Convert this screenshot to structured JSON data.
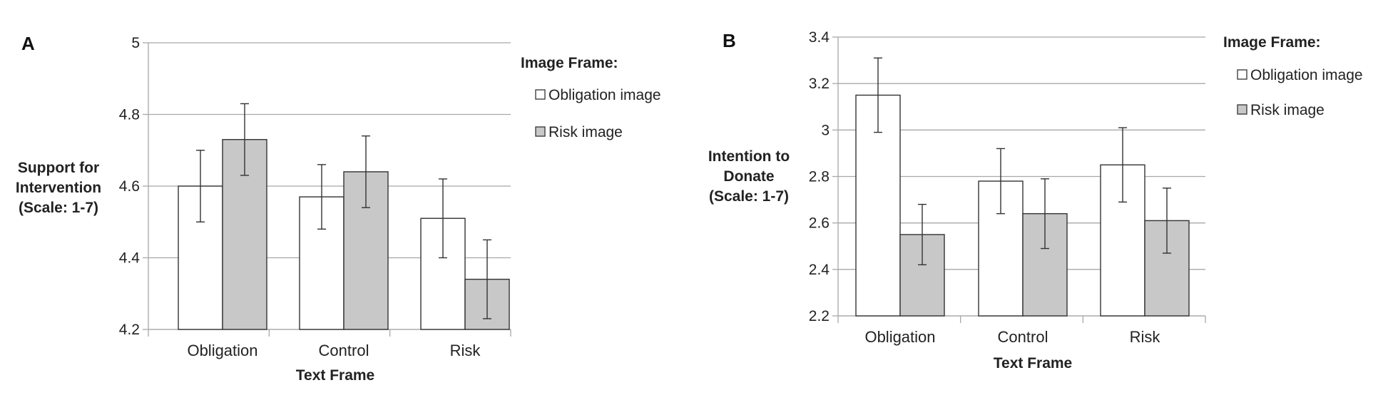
{
  "colors": {
    "obligation_fill": "#ffffff",
    "risk_fill": "#c8c8c8",
    "bar_stroke": "#333333",
    "grid": "#a8a8a8"
  },
  "chart_data": [
    {
      "type": "bar",
      "panel": "A",
      "categories": [
        "Obligation",
        "Control",
        "Risk"
      ],
      "xlabel": "Text Frame",
      "ylabel": [
        "Support for",
        "Intervention",
        "(Scale: 1-7)"
      ],
      "ylim": [
        4.2,
        5
      ],
      "yticks": [
        "4.2",
        "4.4",
        "4.6",
        "4.8",
        "5"
      ],
      "grid": true,
      "legend": {
        "title": "Image Frame:",
        "placement": "right"
      },
      "series": [
        {
          "name": "Obligation image",
          "values": [
            4.6,
            4.57,
            4.51
          ],
          "err_low": [
            4.5,
            4.48,
            4.4
          ],
          "err_high": [
            4.7,
            4.66,
            4.62
          ]
        },
        {
          "name": "Risk image",
          "values": [
            4.73,
            4.64,
            4.34
          ],
          "err_low": [
            4.63,
            4.54,
            4.23
          ],
          "err_high": [
            4.83,
            4.74,
            4.45
          ]
        }
      ]
    },
    {
      "type": "bar",
      "panel": "B",
      "categories": [
        "Obligation",
        "Control",
        "Risk"
      ],
      "xlabel": "Text Frame",
      "ylabel": [
        "Intention to",
        "Donate",
        "(Scale: 1-7)"
      ],
      "ylim": [
        2.2,
        3.4
      ],
      "yticks": [
        "2.2",
        "2.4",
        "2.6",
        "2.8",
        "3",
        "3.2",
        "3.4"
      ],
      "grid": true,
      "legend": {
        "title": "Image Frame:",
        "placement": "top-right"
      },
      "series": [
        {
          "name": "Obligation image",
          "values": [
            3.15,
            2.78,
            2.85
          ],
          "err_low": [
            2.99,
            2.64,
            2.69
          ],
          "err_high": [
            3.31,
            2.92,
            3.01
          ]
        },
        {
          "name": "Risk image",
          "values": [
            2.55,
            2.64,
            2.61
          ],
          "err_low": [
            2.42,
            2.49,
            2.47
          ],
          "err_high": [
            2.68,
            2.79,
            2.75
          ]
        }
      ]
    }
  ]
}
